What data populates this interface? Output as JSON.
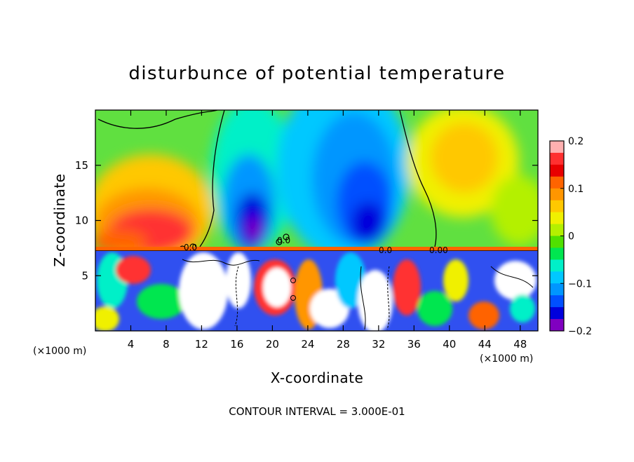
{
  "chart_data": {
    "type": "heatmap",
    "title": "disturbunce of potential temperature",
    "xlabel": "X-coordinate",
    "ylabel": "Z-coordinate",
    "x_unit_label": "(×1000 m)",
    "xlim": [
      0,
      50
    ],
    "ylim": [
      0,
      20
    ],
    "x_ticks": [
      4,
      8,
      12,
      16,
      20,
      24,
      28,
      32,
      36,
      40,
      44,
      48
    ],
    "y_ticks": [
      5,
      10,
      15
    ],
    "colorbar": {
      "range": [
        -0.2,
        0.2
      ],
      "tick_values": [
        0.2,
        0.1,
        0,
        -0.1,
        -0.2
      ],
      "tick_labels": [
        "0.2",
        "0.1",
        "0",
        "−0.1",
        "−0.2"
      ],
      "colors": [
        "#ffb0b0",
        "#ff3030",
        "#e80000",
        "#ff6400",
        "#ff9600",
        "#ffc800",
        "#f0f000",
        "#b4f000",
        "#50e000",
        "#00e650",
        "#00f0c8",
        "#00c8ff",
        "#0096ff",
        "#0050ff",
        "#0000dc",
        "#8000c0"
      ]
    },
    "contour_labels": [
      "0.0",
      "0.0",
      "0.0",
      "0.00"
    ],
    "contour_interval_label": "CONTOUR INTERVAL = 3.000E-01",
    "colors": {
      "upper_field": "#60e040",
      "lower_field": "#ffffff",
      "frame": "#000000"
    }
  }
}
